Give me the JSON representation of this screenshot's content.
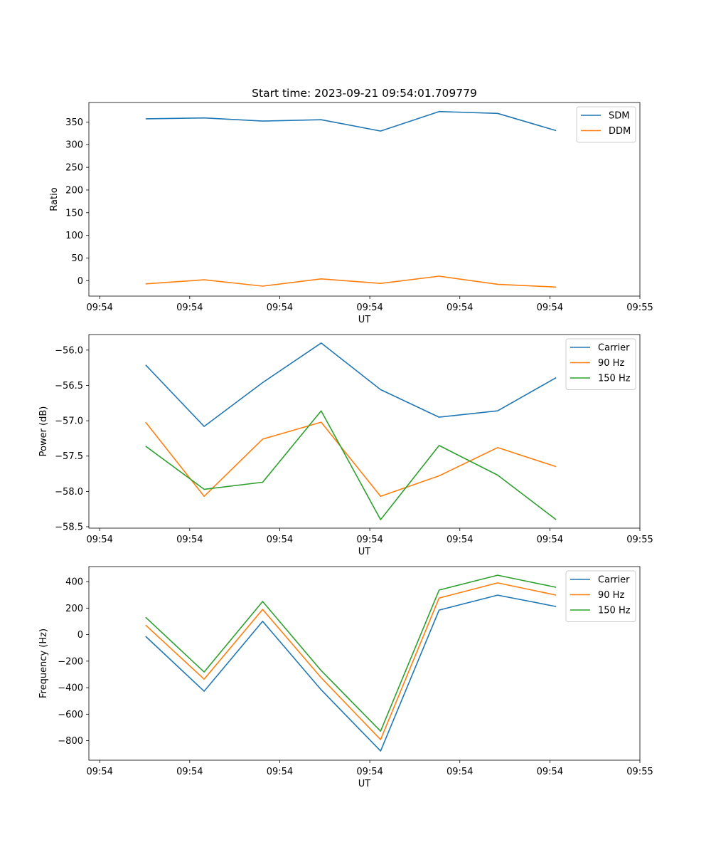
{
  "chart_data": [
    {
      "type": "line",
      "title": "Start time: 2023-09-21 09:54:01.709779",
      "xlabel": "UT",
      "ylabel": "Ratio",
      "x_units": "seconds after 09:54:00",
      "x": [
        5.1,
        11.6,
        18.1,
        24.6,
        31.2,
        37.7,
        44.2,
        50.7
      ],
      "xlim": [
        -1.2,
        60
      ],
      "xticks": [
        0,
        10,
        20,
        30,
        40,
        50,
        60
      ],
      "xtick_labels": [
        "09:54",
        "09:54",
        "09:54",
        "09:54",
        "09:54",
        "09:54",
        "09:55"
      ],
      "ylim": [
        -34,
        393
      ],
      "yticks": [
        0,
        50,
        100,
        150,
        200,
        250,
        300,
        350
      ],
      "ytick_labels": [
        "0",
        "50",
        "100",
        "150",
        "200",
        "250",
        "300",
        "350"
      ],
      "legend": "top-right",
      "series": [
        {
          "name": "SDM",
          "color": "#1f77b4",
          "values": [
            357,
            359,
            352,
            355,
            330,
            373,
            369,
            331
          ]
        },
        {
          "name": "DDM",
          "color": "#ff7f0e",
          "values": [
            -7,
            2,
            -12,
            4,
            -6,
            10,
            -8,
            -14
          ]
        }
      ]
    },
    {
      "type": "line",
      "title": "",
      "xlabel": "UT",
      "ylabel": "Power (dB)",
      "x_units": "seconds after 09:54:00",
      "x": [
        5.1,
        11.6,
        18.1,
        24.6,
        31.2,
        37.7,
        44.2,
        50.7
      ],
      "xlim": [
        -1.2,
        60
      ],
      "xticks": [
        0,
        10,
        20,
        30,
        40,
        50,
        60
      ],
      "xtick_labels": [
        "09:54",
        "09:54",
        "09:54",
        "09:54",
        "09:54",
        "09:54",
        "09:55"
      ],
      "ylim": [
        -58.52,
        -55.78
      ],
      "yticks": [
        -58.5,
        -58.0,
        -57.5,
        -57.0,
        -56.5,
        -56.0
      ],
      "ytick_labels": [
        "−58.5",
        "−58.0",
        "−57.5",
        "−57.0",
        "−56.5",
        "−56.0"
      ],
      "legend": "top-right",
      "series": [
        {
          "name": "Carrier",
          "color": "#1f77b4",
          "values": [
            -56.21,
            -57.08,
            -56.46,
            -55.9,
            -56.56,
            -56.95,
            -56.86,
            -56.39
          ]
        },
        {
          "name": "90 Hz",
          "color": "#ff7f0e",
          "values": [
            -57.02,
            -58.07,
            -57.26,
            -57.02,
            -58.07,
            -57.78,
            -57.38,
            -57.65
          ]
        },
        {
          "name": "150 Hz",
          "color": "#2ca02c",
          "values": [
            -57.36,
            -57.97,
            -57.87,
            -56.86,
            -58.4,
            -57.35,
            -57.77,
            -58.4
          ]
        }
      ]
    },
    {
      "type": "line",
      "title": "",
      "xlabel": "UT",
      "ylabel": "Frequency (Hz)",
      "x_units": "seconds after 09:54:00",
      "x": [
        5.1,
        11.6,
        18.1,
        24.6,
        31.2,
        37.7,
        44.2,
        50.7
      ],
      "xlim": [
        -1.2,
        60
      ],
      "xticks": [
        0,
        10,
        20,
        30,
        40,
        50,
        60
      ],
      "xtick_labels": [
        "09:54",
        "09:54",
        "09:54",
        "09:54",
        "09:54",
        "09:54",
        "09:55"
      ],
      "ylim": [
        -947,
        513
      ],
      "yticks": [
        -800,
        -600,
        -400,
        -200,
        0,
        200,
        400
      ],
      "ytick_labels": [
        "−800",
        "−600",
        "−400",
        "−200",
        "0",
        "200",
        "400"
      ],
      "legend": "top-right",
      "series": [
        {
          "name": "Carrier",
          "color": "#1f77b4",
          "values": [
            -13,
            -427,
            100,
            -416,
            -878,
            185,
            298,
            212
          ]
        },
        {
          "name": "90 Hz",
          "color": "#ff7f0e",
          "values": [
            72,
            -336,
            190,
            -325,
            -792,
            276,
            390,
            298
          ]
        },
        {
          "name": "150 Hz",
          "color": "#2ca02c",
          "values": [
            131,
            -282,
            250,
            -271,
            -728,
            336,
            448,
            357
          ]
        }
      ]
    }
  ]
}
